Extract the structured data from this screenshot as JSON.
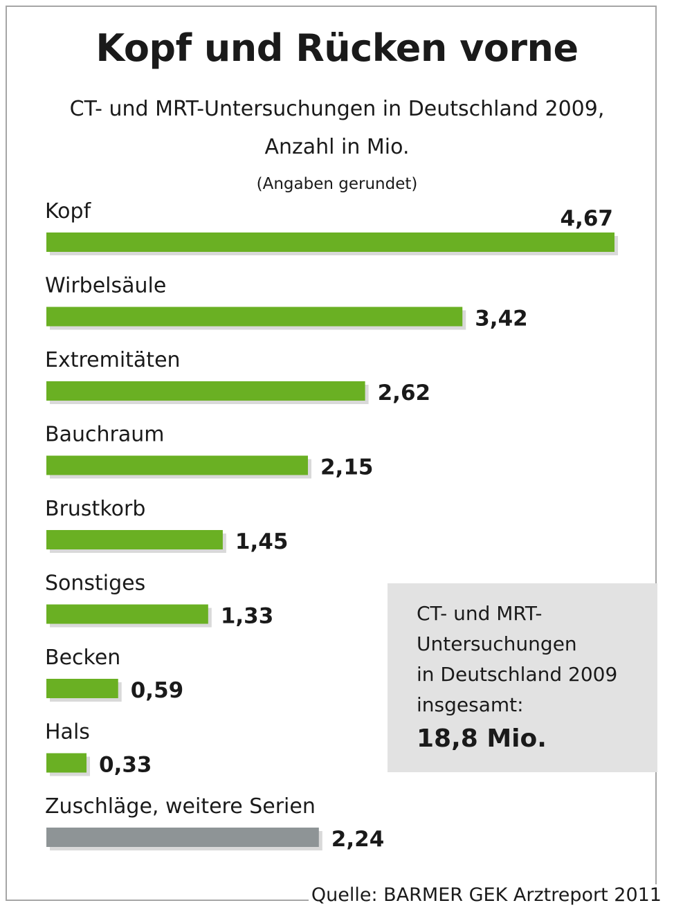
{
  "header": {
    "title": "Kopf und Rücken vorne",
    "subtitle_line1": "CT- und MRT-Untersuchungen in Deutschland 2009,",
    "subtitle_line2": "Anzahl in Mio.",
    "note": "(Angaben gerundet)"
  },
  "colors": {
    "bar_main": "#6ab023",
    "bar_other": "#8e9496",
    "shadow": "#d9d9d9",
    "infobox": "#e2e2e2"
  },
  "chart_data": {
    "type": "bar",
    "orientation": "horizontal",
    "title": "Kopf und Rücken vorne",
    "subtitle": "CT- und MRT-Untersuchungen in Deutschland 2009, Anzahl in Mio.",
    "unit": "Mio.",
    "categories": [
      "Kopf",
      "Wirbelsäule",
      "Extremitäten",
      "Bauchraum",
      "Brustkorb",
      "Sonstiges",
      "Becken",
      "Hals",
      "Zuschläge, weitere Serien"
    ],
    "values": [
      4.67,
      3.42,
      2.62,
      2.15,
      1.45,
      1.33,
      0.59,
      0.33,
      2.24
    ],
    "value_labels": [
      "4,67",
      "3,42",
      "2,62",
      "2,15",
      "1,45",
      "1,33",
      "0,59",
      "0,33",
      "2,24"
    ],
    "highlight": [
      false,
      false,
      false,
      false,
      false,
      false,
      false,
      false,
      true
    ],
    "xlim": [
      0,
      4.67
    ],
    "grid": false,
    "legend": "none"
  },
  "infobox": {
    "line1": "CT- und MRT-",
    "line2": "Untersuchungen",
    "line3": "in Deutschland 2009",
    "line4": "insgesamt:",
    "total": "18,8 Mio."
  },
  "source": "Quelle: BARMER GEK Arztreport 2011"
}
